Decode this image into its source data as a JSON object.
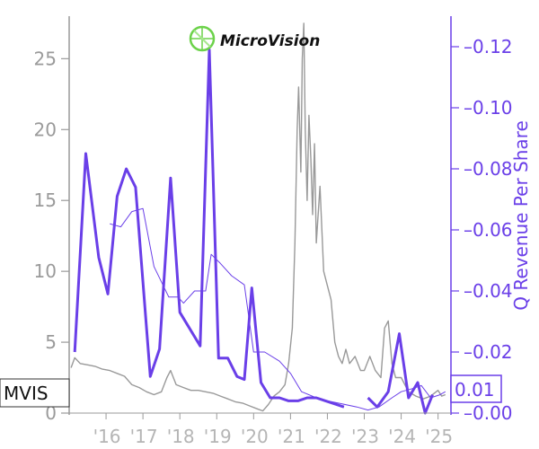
{
  "logo": {
    "company_name": "MicroVision"
  },
  "ticker": "MVIS",
  "last_value_label": "0.01",
  "colors": {
    "price": "#999999",
    "revenue": "#6a3fe8",
    "axis_left": "#9a9a9a",
    "logo_green": "#6cd24a"
  },
  "chart_data": {
    "type": "line",
    "title": "",
    "x_tick_labels": [
      "'16",
      "'17",
      "'18",
      "'19",
      "'20",
      "'21",
      "'22",
      "'23",
      "'24",
      "'25"
    ],
    "x_ticks": [
      2016,
      2017,
      2018,
      2019,
      2020,
      2021,
      2022,
      2023,
      2024,
      2025
    ],
    "xlim": [
      2015.0,
      2025.35
    ],
    "y_left": {
      "label": "",
      "ylim": [
        0,
        28
      ],
      "ticks": [
        0,
        5,
        10,
        15,
        20,
        25
      ]
    },
    "y_right": {
      "label": "Q Revenue Per Share",
      "ylim": [
        0,
        0.13
      ],
      "ticks": [
        0.0,
        0.02,
        0.04,
        0.06,
        0.08,
        0.1,
        0.12
      ],
      "tick_labels": [
        "0.00",
        "0.02",
        "0.04",
        "0.06",
        "0.08",
        "0.10",
        "0.12"
      ]
    },
    "series": [
      {
        "axis": "left",
        "style": "thin-gray",
        "points": [
          [
            2015.05,
            3.2
          ],
          [
            2015.15,
            3.9
          ],
          [
            2015.3,
            3.5
          ],
          [
            2015.5,
            3.4
          ],
          [
            2015.7,
            3.3
          ],
          [
            2015.9,
            3.1
          ],
          [
            2016.1,
            3.0
          ],
          [
            2016.3,
            2.8
          ],
          [
            2016.5,
            2.6
          ],
          [
            2016.7,
            2.0
          ],
          [
            2016.9,
            1.8
          ],
          [
            2017.1,
            1.5
          ],
          [
            2017.3,
            1.3
          ],
          [
            2017.5,
            1.5
          ],
          [
            2017.65,
            2.5
          ],
          [
            2017.75,
            3.0
          ],
          [
            2017.9,
            2.0
          ],
          [
            2018.1,
            1.8
          ],
          [
            2018.3,
            1.6
          ],
          [
            2018.5,
            1.6
          ],
          [
            2018.7,
            1.5
          ],
          [
            2018.9,
            1.4
          ],
          [
            2019.1,
            1.2
          ],
          [
            2019.3,
            1.0
          ],
          [
            2019.5,
            0.8
          ],
          [
            2019.7,
            0.7
          ],
          [
            2019.9,
            0.5
          ],
          [
            2020.1,
            0.3
          ],
          [
            2020.25,
            0.15
          ],
          [
            2020.4,
            0.6
          ],
          [
            2020.55,
            1.2
          ],
          [
            2020.7,
            1.5
          ],
          [
            2020.85,
            2.0
          ],
          [
            2020.95,
            3.5
          ],
          [
            2021.05,
            6.0
          ],
          [
            2021.12,
            12.0
          ],
          [
            2021.18,
            20.0
          ],
          [
            2021.22,
            23.0
          ],
          [
            2021.28,
            17.0
          ],
          [
            2021.32,
            25.0
          ],
          [
            2021.36,
            27.5
          ],
          [
            2021.4,
            20.0
          ],
          [
            2021.45,
            15.0
          ],
          [
            2021.5,
            21.0
          ],
          [
            2021.55,
            18.0
          ],
          [
            2021.6,
            14.0
          ],
          [
            2021.65,
            19.0
          ],
          [
            2021.7,
            12.0
          ],
          [
            2021.8,
            16.0
          ],
          [
            2021.9,
            10.0
          ],
          [
            2022.0,
            9.0
          ],
          [
            2022.1,
            8.0
          ],
          [
            2022.2,
            5.0
          ],
          [
            2022.3,
            4.0
          ],
          [
            2022.4,
            3.5
          ],
          [
            2022.5,
            4.5
          ],
          [
            2022.6,
            3.5
          ],
          [
            2022.75,
            4.0
          ],
          [
            2022.9,
            3.0
          ],
          [
            2023.0,
            3.0
          ],
          [
            2023.15,
            4.0
          ],
          [
            2023.3,
            3.0
          ],
          [
            2023.45,
            2.5
          ],
          [
            2023.55,
            6.0
          ],
          [
            2023.65,
            6.5
          ],
          [
            2023.75,
            3.5
          ],
          [
            2023.85,
            2.5
          ],
          [
            2024.0,
            2.5
          ],
          [
            2024.2,
            1.5
          ],
          [
            2024.4,
            1.2
          ],
          [
            2024.6,
            1.0
          ],
          [
            2024.8,
            1.2
          ],
          [
            2025.0,
            1.6
          ],
          [
            2025.1,
            1.2
          ],
          [
            2025.2,
            1.3
          ]
        ]
      },
      {
        "axis": "right",
        "style": "thin-purple",
        "points": [
          [
            2016.1,
            0.062
          ],
          [
            2016.4,
            0.061
          ],
          [
            2016.7,
            0.066
          ],
          [
            2017.0,
            0.067
          ],
          [
            2017.3,
            0.048
          ],
          [
            2017.7,
            0.038
          ],
          [
            2017.95,
            0.038
          ],
          [
            2018.1,
            0.036
          ],
          [
            2018.4,
            0.04
          ],
          [
            2018.7,
            0.04
          ],
          [
            2018.85,
            0.052
          ],
          [
            2019.1,
            0.049
          ],
          [
            2019.4,
            0.045
          ],
          [
            2019.75,
            0.042
          ],
          [
            2020.0,
            0.02
          ],
          [
            2020.3,
            0.02
          ],
          [
            2020.7,
            0.017
          ],
          [
            2021.0,
            0.013
          ],
          [
            2021.3,
            0.007
          ],
          [
            2021.7,
            0.005
          ],
          [
            2022.0,
            0.004
          ],
          [
            2022.4,
            0.003
          ],
          [
            2022.8,
            0.002
          ],
          [
            2023.1,
            0.001
          ],
          [
            2023.4,
            0.002
          ],
          [
            2023.75,
            0.005
          ],
          [
            2024.0,
            0.007
          ],
          [
            2024.3,
            0.008
          ],
          [
            2024.55,
            0.009
          ],
          [
            2024.8,
            0.005
          ],
          [
            2025.05,
            0.006
          ],
          [
            2025.2,
            0.007
          ]
        ]
      },
      {
        "axis": "right",
        "style": "thick-purple",
        "segments": [
          [
            [
              2015.15,
              0.02
            ],
            [
              2015.45,
              0.085
            ],
            [
              2015.8,
              0.051
            ],
            [
              2016.05,
              0.039
            ],
            [
              2016.3,
              0.071
            ],
            [
              2016.55,
              0.08
            ],
            [
              2016.8,
              0.074
            ],
            [
              2017.0,
              0.043
            ],
            [
              2017.2,
              0.012
            ],
            [
              2017.45,
              0.021
            ],
            [
              2017.75,
              0.077
            ],
            [
              2018.0,
              0.033
            ],
            [
              2018.25,
              0.028
            ],
            [
              2018.55,
              0.022
            ],
            [
              2018.8,
              0.119
            ],
            [
              2019.05,
              0.018
            ],
            [
              2019.3,
              0.018
            ],
            [
              2019.55,
              0.012
            ],
            [
              2019.75,
              0.011
            ],
            [
              2019.95,
              0.041
            ],
            [
              2020.2,
              0.01
            ],
            [
              2020.45,
              0.005
            ],
            [
              2020.7,
              0.005
            ],
            [
              2020.95,
              0.004
            ],
            [
              2021.2,
              0.004
            ],
            [
              2021.45,
              0.005
            ],
            [
              2021.7,
              0.005
            ],
            [
              2021.95,
              0.004
            ],
            [
              2022.2,
              0.003
            ],
            [
              2022.45,
              0.002
            ]
          ],
          [
            [
              2023.1,
              0.005
            ],
            [
              2023.35,
              0.002
            ],
            [
              2023.65,
              0.007
            ],
            [
              2023.95,
              0.026
            ],
            [
              2024.2,
              0.005
            ],
            [
              2024.45,
              0.01
            ],
            [
              2024.65,
              0.0
            ],
            [
              2024.85,
              0.006
            ]
          ]
        ]
      }
    ]
  }
}
